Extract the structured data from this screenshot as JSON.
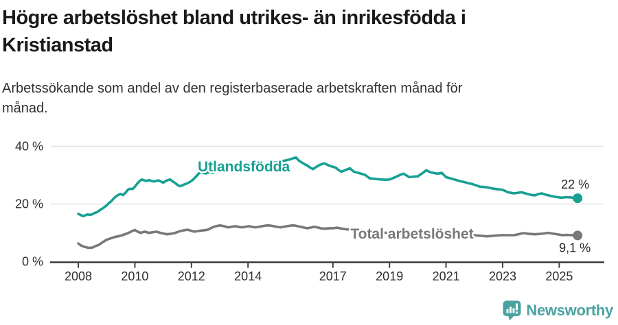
{
  "header": {
    "title": "Högre arbetslöshet bland utrikes- än inrikesfödda i\nKristianstad",
    "subtitle": "Arbetssökande som andel av den registerbaserade arbetskraften månad för\nmånad."
  },
  "footer": {
    "brand": "Newsworthy"
  },
  "colors": {
    "teal": "#17a093",
    "gray": "#78787c",
    "grid": "#e4e4e4",
    "axis": "#3f3f3f",
    "tick_label": "#2e2e2e",
    "end_label": "#262626",
    "logo": "#4ba3a1"
  },
  "chart_data": {
    "type": "line",
    "x_unit": "year_decimal",
    "x_range": [
      2008.0,
      2025.65
    ],
    "ylim": [
      0,
      43
    ],
    "grid": "horizontal",
    "legend_position": "inline-labels",
    "yticks": [
      {
        "label": "0 %",
        "value": 0
      },
      {
        "label": "20 %",
        "value": 20
      },
      {
        "label": "40 %",
        "value": 40
      }
    ],
    "xticks": [
      {
        "label": "2008",
        "value": 2008
      },
      {
        "label": "2010",
        "value": 2010
      },
      {
        "label": "2012",
        "value": 2012
      },
      {
        "label": "2014",
        "value": 2014
      },
      {
        "label": "2017",
        "value": 2017
      },
      {
        "label": "2019",
        "value": 2019
      },
      {
        "label": "2021",
        "value": 2021
      },
      {
        "label": "2023",
        "value": 2023
      },
      {
        "label": "2025",
        "value": 2025
      }
    ],
    "series": [
      {
        "name": "Utlandsfödda",
        "color": "#17a093",
        "end_label": "22 %",
        "points": [
          [
            2008.0,
            16.6
          ],
          [
            2008.08,
            16.2
          ],
          [
            2008.17,
            15.8
          ],
          [
            2008.25,
            16.1
          ],
          [
            2008.33,
            16.4
          ],
          [
            2008.42,
            16.2
          ],
          [
            2008.5,
            16.5
          ],
          [
            2008.58,
            16.9
          ],
          [
            2008.67,
            17.2
          ],
          [
            2008.75,
            17.8
          ],
          [
            2008.83,
            18.3
          ],
          [
            2008.92,
            18.9
          ],
          [
            2009.0,
            19.5
          ],
          [
            2009.08,
            20.3
          ],
          [
            2009.17,
            21.0
          ],
          [
            2009.25,
            21.9
          ],
          [
            2009.33,
            22.6
          ],
          [
            2009.42,
            23.2
          ],
          [
            2009.5,
            23.5
          ],
          [
            2009.58,
            23.1
          ],
          [
            2009.67,
            23.9
          ],
          [
            2009.75,
            24.9
          ],
          [
            2009.83,
            25.3
          ],
          [
            2009.92,
            25.2
          ],
          [
            2010.0,
            26.0
          ],
          [
            2010.08,
            27.0
          ],
          [
            2010.17,
            28.0
          ],
          [
            2010.25,
            28.5
          ],
          [
            2010.33,
            28.2
          ],
          [
            2010.42,
            28.0
          ],
          [
            2010.5,
            28.3
          ],
          [
            2010.58,
            28.0
          ],
          [
            2010.67,
            27.8
          ],
          [
            2010.75,
            28.0
          ],
          [
            2010.83,
            28.2
          ],
          [
            2010.92,
            27.8
          ],
          [
            2011.0,
            27.4
          ],
          [
            2011.08,
            27.9
          ],
          [
            2011.17,
            28.3
          ],
          [
            2011.25,
            28.5
          ],
          [
            2011.33,
            27.9
          ],
          [
            2011.42,
            27.3
          ],
          [
            2011.5,
            26.7
          ],
          [
            2011.58,
            26.2
          ],
          [
            2011.67,
            26.4
          ],
          [
            2011.75,
            26.8
          ],
          [
            2011.83,
            27.1
          ],
          [
            2011.92,
            27.5
          ],
          [
            2012.0,
            28.0
          ],
          [
            2012.08,
            28.7
          ],
          [
            2012.17,
            29.6
          ],
          [
            2012.25,
            30.5
          ],
          [
            2012.33,
            31.2
          ],
          [
            2012.42,
            30.8
          ],
          [
            2012.5,
            30.6
          ],
          [
            2012.58,
            30.9
          ],
          [
            2012.67,
            31.1
          ],
          [
            2012.75,
            30.8
          ],
          [
            2012.83,
            31.2
          ],
          [
            2012.92,
            31.6
          ],
          [
            2013.0,
            31.9
          ],
          [
            2013.17,
            32.1
          ],
          [
            2013.33,
            32.5
          ],
          [
            2013.5,
            32.2
          ],
          [
            2013.67,
            32.7
          ],
          [
            2013.83,
            33.0
          ],
          [
            2014.0,
            33.2
          ],
          [
            2014.17,
            33.5
          ],
          [
            2014.33,
            33.3
          ],
          [
            2014.5,
            33.6
          ],
          [
            2014.67,
            33.9
          ],
          [
            2014.83,
            34.2
          ],
          [
            2015.0,
            34.4
          ],
          [
            2015.17,
            34.8
          ],
          [
            2015.33,
            35.1
          ],
          [
            2015.5,
            35.5
          ],
          [
            2015.6,
            35.9
          ],
          [
            2015.7,
            36.1
          ],
          [
            2015.8,
            35.0
          ],
          [
            2015.9,
            34.4
          ],
          [
            2016.0,
            33.8
          ],
          [
            2016.1,
            33.3
          ],
          [
            2016.2,
            32.6
          ],
          [
            2016.3,
            32.1
          ],
          [
            2016.4,
            32.8
          ],
          [
            2016.5,
            33.4
          ],
          [
            2016.6,
            33.8
          ],
          [
            2016.7,
            34.1
          ],
          [
            2016.8,
            33.6
          ],
          [
            2016.9,
            33.2
          ],
          [
            2017.0,
            32.9
          ],
          [
            2017.1,
            32.6
          ],
          [
            2017.2,
            31.8
          ],
          [
            2017.3,
            31.2
          ],
          [
            2017.45,
            31.8
          ],
          [
            2017.6,
            32.4
          ],
          [
            2017.74,
            31.2
          ],
          [
            2017.9,
            30.8
          ],
          [
            2018.0,
            30.5
          ],
          [
            2018.14,
            30.1
          ],
          [
            2018.3,
            28.9
          ],
          [
            2018.5,
            28.7
          ],
          [
            2018.7,
            28.5
          ],
          [
            2018.85,
            28.4
          ],
          [
            2019.0,
            28.5
          ],
          [
            2019.15,
            29.1
          ],
          [
            2019.27,
            29.6
          ],
          [
            2019.4,
            30.2
          ],
          [
            2019.5,
            30.5
          ],
          [
            2019.6,
            29.9
          ],
          [
            2019.7,
            29.3
          ],
          [
            2019.85,
            29.5
          ],
          [
            2020.0,
            29.6
          ],
          [
            2020.15,
            30.6
          ],
          [
            2020.3,
            31.7
          ],
          [
            2020.45,
            31.0
          ],
          [
            2020.55,
            30.8
          ],
          [
            2020.7,
            30.5
          ],
          [
            2020.85,
            30.8
          ],
          [
            2021.0,
            29.3
          ],
          [
            2021.15,
            28.9
          ],
          [
            2021.33,
            28.4
          ],
          [
            2021.5,
            27.9
          ],
          [
            2021.65,
            27.6
          ],
          [
            2021.8,
            27.2
          ],
          [
            2021.9,
            27.0
          ],
          [
            2022.05,
            26.5
          ],
          [
            2022.2,
            26.0
          ],
          [
            2022.35,
            25.9
          ],
          [
            2022.5,
            25.7
          ],
          [
            2022.7,
            25.3
          ],
          [
            2022.85,
            25.1
          ],
          [
            2023.0,
            24.9
          ],
          [
            2023.18,
            24.1
          ],
          [
            2023.4,
            23.7
          ],
          [
            2023.55,
            23.9
          ],
          [
            2023.66,
            24.1
          ],
          [
            2023.8,
            23.7
          ],
          [
            2023.9,
            23.4
          ],
          [
            2024.05,
            23.1
          ],
          [
            2024.14,
            23.0
          ],
          [
            2024.25,
            23.4
          ],
          [
            2024.38,
            23.7
          ],
          [
            2024.5,
            23.3
          ],
          [
            2024.62,
            23.0
          ],
          [
            2024.75,
            22.7
          ],
          [
            2024.86,
            22.5
          ],
          [
            2025.0,
            22.3
          ],
          [
            2025.1,
            22.2
          ],
          [
            2025.25,
            22.4
          ],
          [
            2025.4,
            22.3
          ],
          [
            2025.5,
            22.1
          ],
          [
            2025.65,
            22.0
          ]
        ]
      },
      {
        "name": "Total arbetslöshet",
        "color": "#78787c",
        "end_label": "9,1 %",
        "points": [
          [
            2008.0,
            6.3
          ],
          [
            2008.1,
            5.6
          ],
          [
            2008.2,
            5.2
          ],
          [
            2008.36,
            4.8
          ],
          [
            2008.5,
            4.9
          ],
          [
            2008.6,
            5.4
          ],
          [
            2008.72,
            5.8
          ],
          [
            2008.84,
            6.6
          ],
          [
            2009.0,
            7.6
          ],
          [
            2009.15,
            8.1
          ],
          [
            2009.3,
            8.6
          ],
          [
            2009.45,
            8.9
          ],
          [
            2009.56,
            9.2
          ],
          [
            2009.7,
            9.7
          ],
          [
            2009.8,
            10.1
          ],
          [
            2009.9,
            10.6
          ],
          [
            2010.0,
            11.0
          ],
          [
            2010.1,
            10.4
          ],
          [
            2010.2,
            10.0
          ],
          [
            2010.35,
            10.4
          ],
          [
            2010.5,
            10.0
          ],
          [
            2010.62,
            10.2
          ],
          [
            2010.76,
            10.4
          ],
          [
            2010.9,
            10.0
          ],
          [
            2011.0,
            9.8
          ],
          [
            2011.14,
            9.5
          ],
          [
            2011.28,
            9.7
          ],
          [
            2011.4,
            9.9
          ],
          [
            2011.6,
            10.6
          ],
          [
            2011.75,
            10.9
          ],
          [
            2011.86,
            11.1
          ],
          [
            2012.0,
            10.7
          ],
          [
            2012.1,
            10.4
          ],
          [
            2012.22,
            10.6
          ],
          [
            2012.34,
            10.8
          ],
          [
            2012.46,
            10.9
          ],
          [
            2012.58,
            11.1
          ],
          [
            2012.7,
            11.7
          ],
          [
            2012.82,
            12.2
          ],
          [
            2013.0,
            12.6
          ],
          [
            2013.15,
            12.3
          ],
          [
            2013.3,
            11.9
          ],
          [
            2013.42,
            12.1
          ],
          [
            2013.55,
            12.3
          ],
          [
            2013.66,
            12.1
          ],
          [
            2013.78,
            11.9
          ],
          [
            2013.9,
            12.1
          ],
          [
            2014.02,
            12.3
          ],
          [
            2014.14,
            12.1
          ],
          [
            2014.26,
            11.9
          ],
          [
            2014.38,
            12.1
          ],
          [
            2014.5,
            12.3
          ],
          [
            2014.62,
            12.5
          ],
          [
            2014.74,
            12.6
          ],
          [
            2014.9,
            12.3
          ],
          [
            2015.02,
            12.1
          ],
          [
            2015.14,
            11.9
          ],
          [
            2015.26,
            12.1
          ],
          [
            2015.38,
            12.3
          ],
          [
            2015.5,
            12.5
          ],
          [
            2015.63,
            12.6
          ],
          [
            2015.75,
            12.3
          ],
          [
            2015.87,
            12.1
          ],
          [
            2016.0,
            11.8
          ],
          [
            2016.1,
            11.6
          ],
          [
            2016.25,
            11.9
          ],
          [
            2016.35,
            12.1
          ],
          [
            2016.5,
            11.8
          ],
          [
            2016.6,
            11.5
          ],
          [
            2016.75,
            11.5
          ],
          [
            2016.9,
            11.6
          ],
          [
            2017.0,
            11.6
          ],
          [
            2017.15,
            11.8
          ],
          [
            2017.3,
            11.5
          ],
          [
            2017.5,
            11.2
          ],
          [
            2017.7,
            11.0
          ],
          [
            2017.9,
            10.8
          ],
          [
            2018.1,
            10.6
          ],
          [
            2018.3,
            10.4
          ],
          [
            2018.5,
            10.2
          ],
          [
            2018.7,
            10.1
          ],
          [
            2018.9,
            10.0
          ],
          [
            2019.1,
            9.8
          ],
          [
            2019.3,
            9.7
          ],
          [
            2019.5,
            9.6
          ],
          [
            2019.7,
            9.6
          ],
          [
            2019.9,
            9.7
          ],
          [
            2020.1,
            9.9
          ],
          [
            2020.3,
            10.4
          ],
          [
            2020.45,
            10.6
          ],
          [
            2020.6,
            10.5
          ],
          [
            2020.8,
            10.3
          ],
          [
            2021.0,
            10.1
          ],
          [
            2021.2,
            9.9
          ],
          [
            2021.4,
            9.7
          ],
          [
            2021.6,
            9.5
          ],
          [
            2021.8,
            9.4
          ],
          [
            2021.98,
            9.2
          ],
          [
            2022.2,
            9.0
          ],
          [
            2022.46,
            8.8
          ],
          [
            2022.7,
            9.0
          ],
          [
            2022.94,
            9.2
          ],
          [
            2023.15,
            9.2
          ],
          [
            2023.4,
            9.2
          ],
          [
            2023.6,
            9.6
          ],
          [
            2023.73,
            9.9
          ],
          [
            2023.9,
            9.7
          ],
          [
            2024.14,
            9.5
          ],
          [
            2024.38,
            9.7
          ],
          [
            2024.62,
            10.0
          ],
          [
            2024.8,
            9.7
          ],
          [
            2025.0,
            9.4
          ],
          [
            2025.1,
            9.2
          ],
          [
            2025.25,
            9.3
          ],
          [
            2025.5,
            9.2
          ],
          [
            2025.65,
            9.1
          ]
        ]
      }
    ]
  }
}
